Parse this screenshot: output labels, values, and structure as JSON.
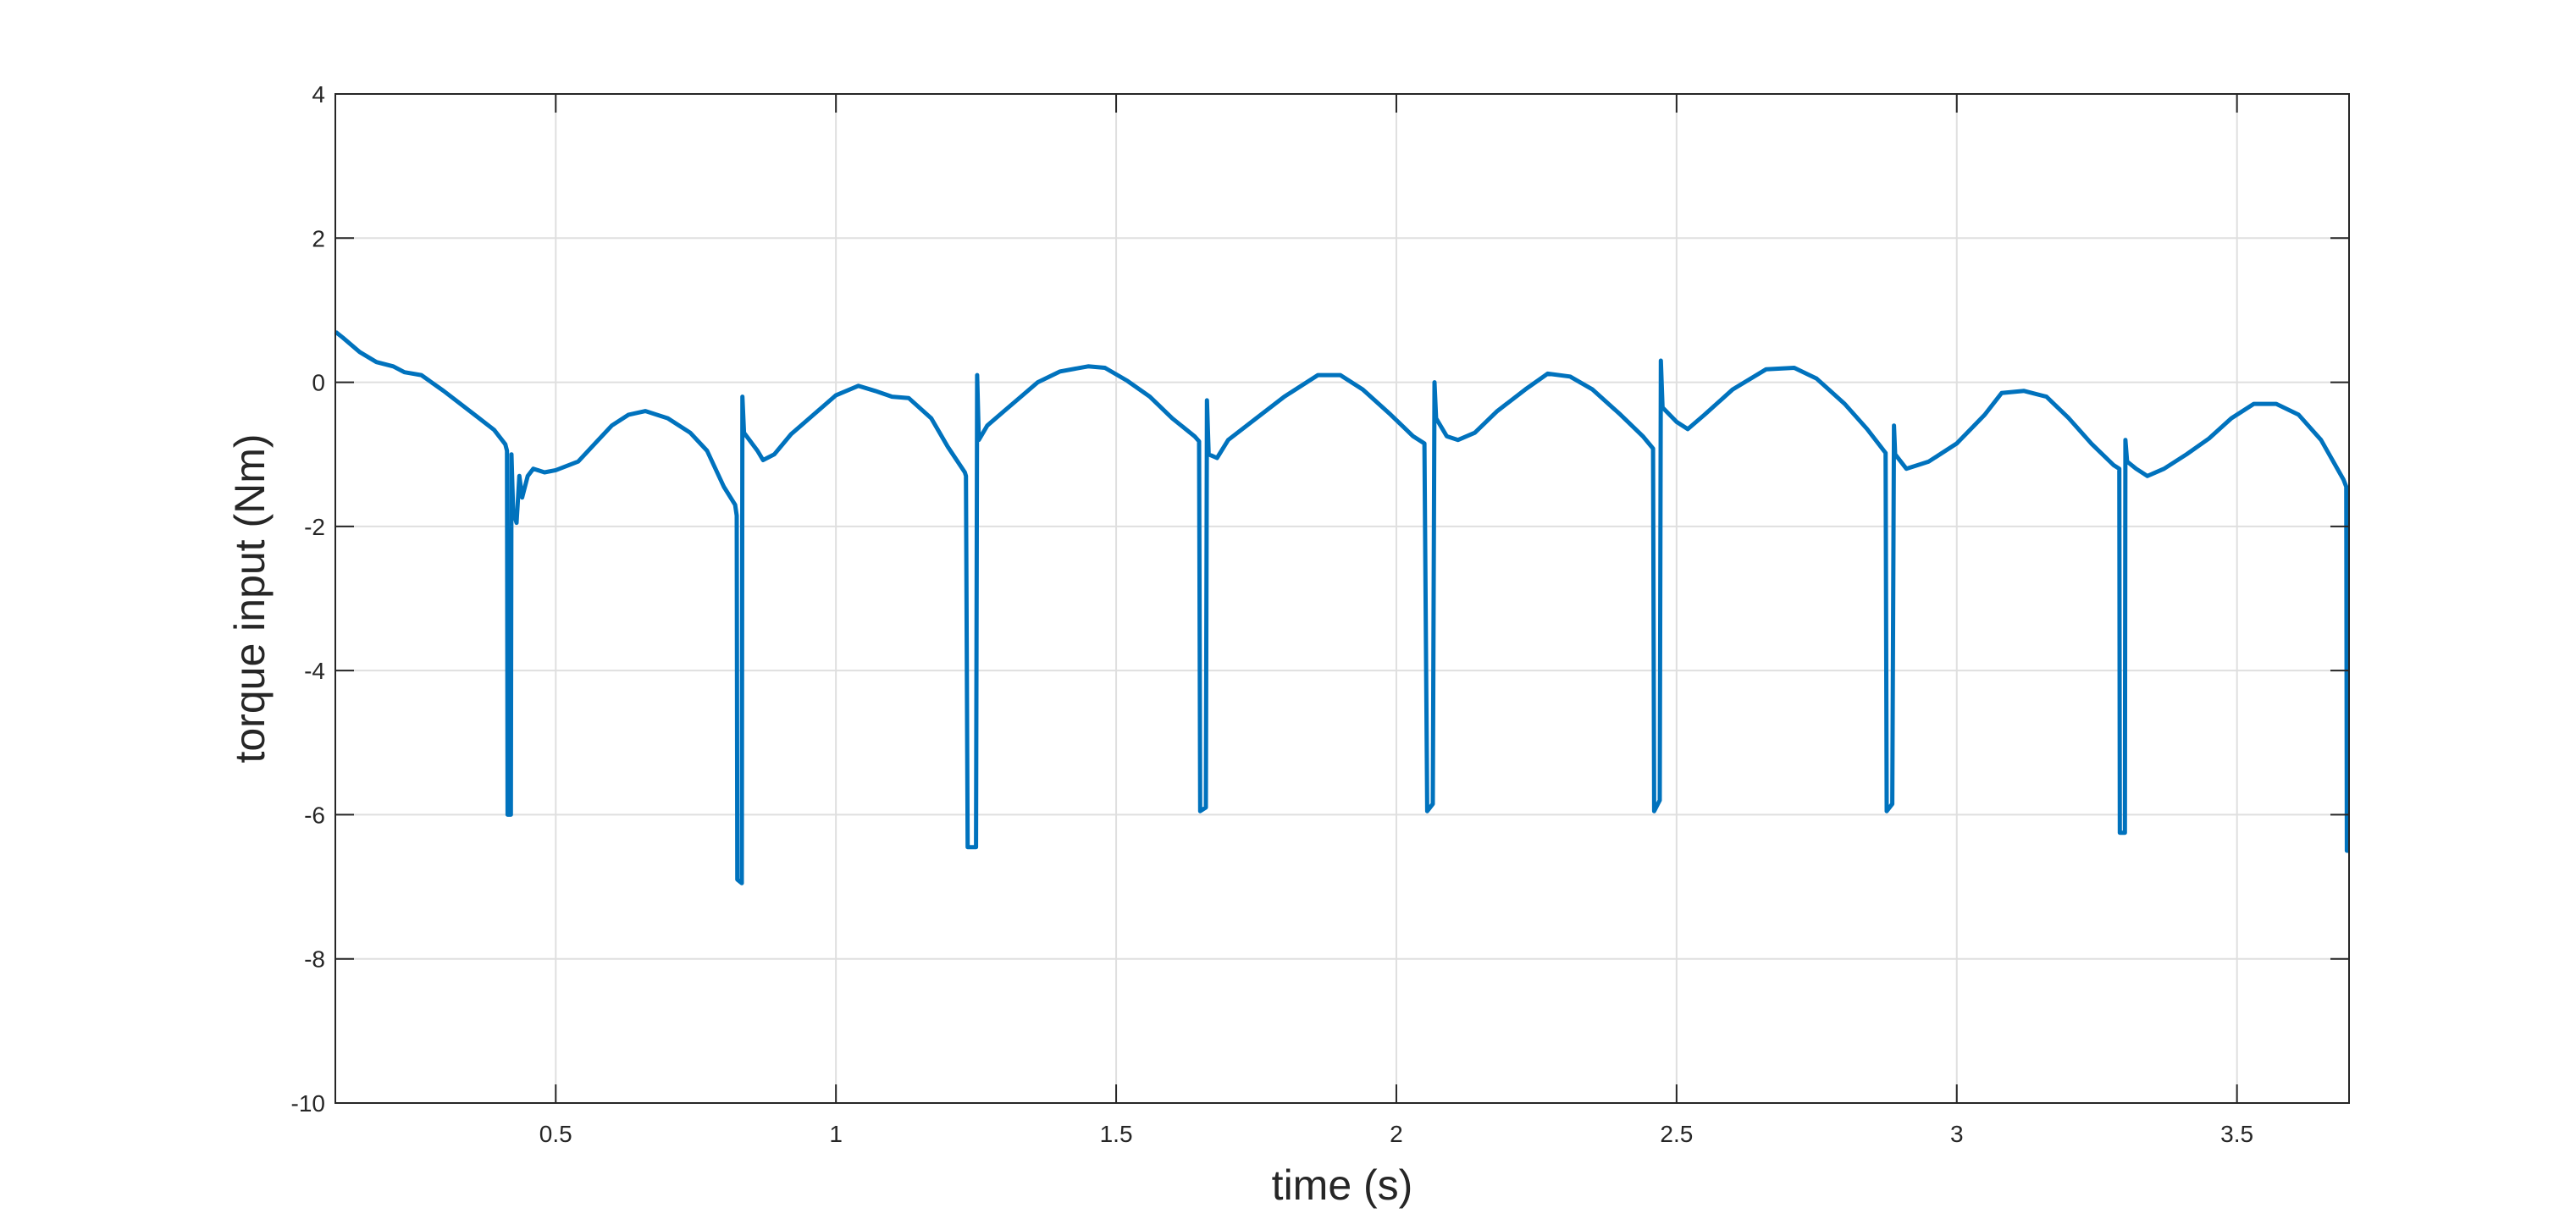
{
  "chart_data": {
    "type": "line",
    "title": "",
    "xlabel": "time (s)",
    "ylabel": "torque input (Nm)",
    "xlim": [
      0.1067,
      3.7
    ],
    "ylim": [
      -10,
      4
    ],
    "xticks": [
      0.5,
      1,
      1.5,
      2,
      2.5,
      3,
      3.5
    ],
    "xtick_labels": [
      "0.5",
      "1",
      "1.5",
      "2",
      "2.5",
      "3",
      "3.5"
    ],
    "yticks": [
      -10,
      -8,
      -6,
      -4,
      -2,
      0,
      2,
      4
    ],
    "ytick_labels": [
      "-10",
      "-8",
      "-6",
      "-4",
      "-2",
      "0",
      "2",
      "4"
    ],
    "grid": true,
    "line_color": "#0072BD",
    "series": [
      {
        "name": "",
        "points": [
          [
            0.107,
            0.7
          ],
          [
            0.12,
            0.62
          ],
          [
            0.15,
            0.42
          ],
          [
            0.18,
            0.28
          ],
          [
            0.21,
            0.22
          ],
          [
            0.23,
            0.14
          ],
          [
            0.26,
            0.1
          ],
          [
            0.3,
            -0.12
          ],
          [
            0.33,
            -0.3
          ],
          [
            0.36,
            -0.48
          ],
          [
            0.39,
            -0.66
          ],
          [
            0.41,
            -0.86
          ],
          [
            0.413,
            -0.95
          ],
          [
            0.414,
            -6.0
          ],
          [
            0.42,
            -6.0
          ],
          [
            0.421,
            -1.0
          ],
          [
            0.424,
            -1.8
          ],
          [
            0.43,
            -1.95
          ],
          [
            0.435,
            -1.3
          ],
          [
            0.44,
            -1.6
          ],
          [
            0.45,
            -1.3
          ],
          [
            0.46,
            -1.2
          ],
          [
            0.48,
            -1.25
          ],
          [
            0.5,
            -1.22
          ],
          [
            0.54,
            -1.1
          ],
          [
            0.57,
            -0.85
          ],
          [
            0.6,
            -0.6
          ],
          [
            0.63,
            -0.45
          ],
          [
            0.66,
            -0.4
          ],
          [
            0.7,
            -0.5
          ],
          [
            0.74,
            -0.7
          ],
          [
            0.77,
            -0.95
          ],
          [
            0.8,
            -1.45
          ],
          [
            0.82,
            -1.7
          ],
          [
            0.823,
            -1.85
          ],
          [
            0.824,
            -6.9
          ],
          [
            0.832,
            -6.95
          ],
          [
            0.833,
            -0.2
          ],
          [
            0.836,
            -0.7
          ],
          [
            0.86,
            -0.95
          ],
          [
            0.87,
            -1.08
          ],
          [
            0.89,
            -1.0
          ],
          [
            0.92,
            -0.72
          ],
          [
            0.96,
            -0.45
          ],
          [
            1.0,
            -0.18
          ],
          [
            1.04,
            -0.05
          ],
          [
            1.07,
            -0.12
          ],
          [
            1.1,
            -0.2
          ],
          [
            1.13,
            -0.22
          ],
          [
            1.17,
            -0.5
          ],
          [
            1.2,
            -0.9
          ],
          [
            1.23,
            -1.25
          ],
          [
            1.232,
            -1.3
          ],
          [
            1.235,
            -6.45
          ],
          [
            1.25,
            -6.45
          ],
          [
            1.252,
            0.1
          ],
          [
            1.255,
            -0.8
          ],
          [
            1.27,
            -0.6
          ],
          [
            1.3,
            -0.4
          ],
          [
            1.33,
            -0.2
          ],
          [
            1.36,
            0.0
          ],
          [
            1.4,
            0.15
          ],
          [
            1.45,
            0.22
          ],
          [
            1.48,
            0.2
          ],
          [
            1.52,
            0.02
          ],
          [
            1.56,
            -0.2
          ],
          [
            1.6,
            -0.5
          ],
          [
            1.64,
            -0.75
          ],
          [
            1.648,
            -0.82
          ],
          [
            1.65,
            -5.95
          ],
          [
            1.66,
            -5.9
          ],
          [
            1.662,
            -0.25
          ],
          [
            1.665,
            -1.0
          ],
          [
            1.68,
            -1.05
          ],
          [
            1.7,
            -0.8
          ],
          [
            1.75,
            -0.5
          ],
          [
            1.8,
            -0.2
          ],
          [
            1.86,
            0.1
          ],
          [
            1.9,
            0.1
          ],
          [
            1.94,
            -0.1
          ],
          [
            1.99,
            -0.45
          ],
          [
            2.03,
            -0.75
          ],
          [
            2.05,
            -0.85
          ],
          [
            2.055,
            -5.95
          ],
          [
            2.065,
            -5.85
          ],
          [
            2.068,
            0.0
          ],
          [
            2.071,
            -0.5
          ],
          [
            2.09,
            -0.75
          ],
          [
            2.11,
            -0.8
          ],
          [
            2.14,
            -0.7
          ],
          [
            2.18,
            -0.4
          ],
          [
            2.23,
            -0.1
          ],
          [
            2.27,
            0.12
          ],
          [
            2.31,
            0.08
          ],
          [
            2.35,
            -0.1
          ],
          [
            2.4,
            -0.45
          ],
          [
            2.44,
            -0.75
          ],
          [
            2.458,
            -0.92
          ],
          [
            2.46,
            -5.95
          ],
          [
            2.47,
            -5.8
          ],
          [
            2.472,
            0.3
          ],
          [
            2.475,
            -0.35
          ],
          [
            2.5,
            -0.55
          ],
          [
            2.52,
            -0.65
          ],
          [
            2.55,
            -0.45
          ],
          [
            2.6,
            -0.1
          ],
          [
            2.66,
            0.18
          ],
          [
            2.71,
            0.2
          ],
          [
            2.75,
            0.05
          ],
          [
            2.8,
            -0.3
          ],
          [
            2.84,
            -0.65
          ],
          [
            2.87,
            -0.95
          ],
          [
            2.873,
            -0.98
          ],
          [
            2.875,
            -5.95
          ],
          [
            2.885,
            -5.85
          ],
          [
            2.888,
            -0.6
          ],
          [
            2.89,
            -1.0
          ],
          [
            2.91,
            -1.2
          ],
          [
            2.95,
            -1.1
          ],
          [
            3.0,
            -0.85
          ],
          [
            3.05,
            -0.45
          ],
          [
            3.08,
            -0.15
          ],
          [
            3.12,
            -0.12
          ],
          [
            3.16,
            -0.2
          ],
          [
            3.2,
            -0.5
          ],
          [
            3.24,
            -0.85
          ],
          [
            3.28,
            -1.15
          ],
          [
            3.29,
            -1.2
          ],
          [
            3.291,
            -6.25
          ],
          [
            3.3,
            -6.25
          ],
          [
            3.301,
            -0.8
          ],
          [
            3.304,
            -1.1
          ],
          [
            3.32,
            -1.2
          ],
          [
            3.34,
            -1.3
          ],
          [
            3.37,
            -1.2
          ],
          [
            3.41,
            -1.0
          ],
          [
            3.45,
            -0.78
          ],
          [
            3.49,
            -0.5
          ],
          [
            3.53,
            -0.3
          ],
          [
            3.57,
            -0.3
          ],
          [
            3.61,
            -0.45
          ],
          [
            3.65,
            -0.8
          ],
          [
            3.69,
            -1.35
          ],
          [
            3.695,
            -1.45
          ],
          [
            3.696,
            -6.5
          ],
          [
            3.7,
            -6.5
          ]
        ]
      }
    ]
  }
}
